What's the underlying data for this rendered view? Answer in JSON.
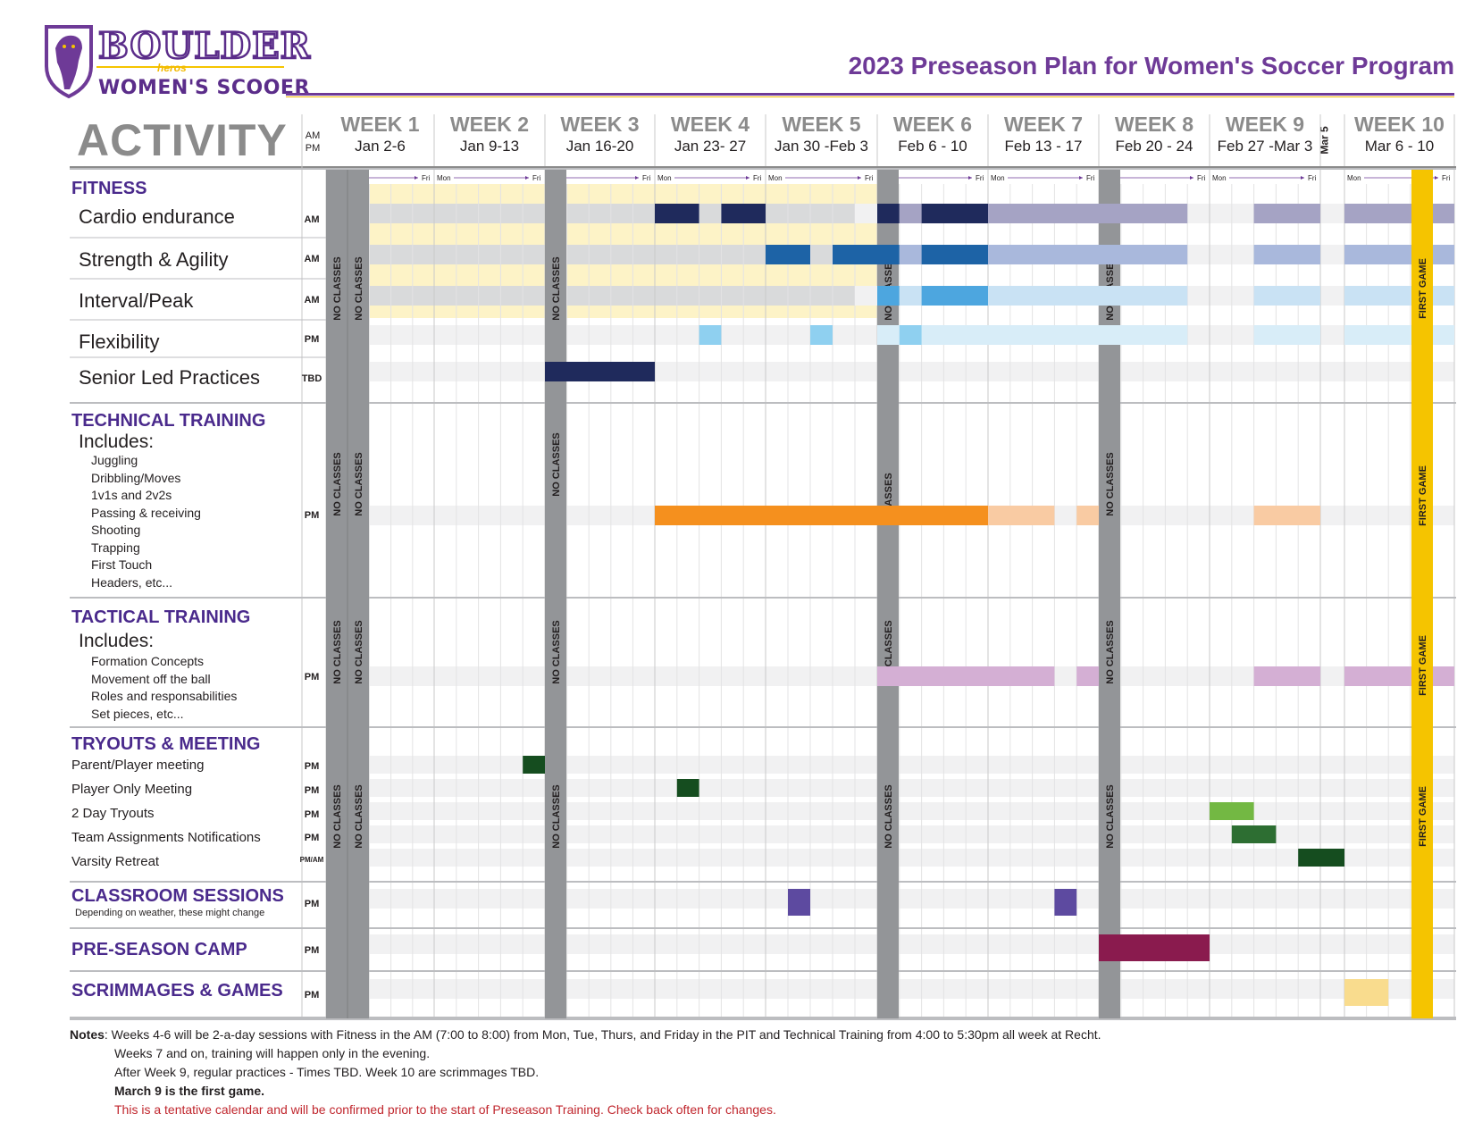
{
  "logo": {
    "main": "BOULDER",
    "sub": "WOMEN'S SCOOER",
    "mid": "heros",
    "shield_icon": "panther-shield-icon"
  },
  "title": "2023 Preseason Plan for Women's Soccer Program",
  "header": {
    "activity": "ACTIVITY",
    "ampm": "AM PM",
    "mar5": "Mar 5",
    "weeks": [
      {
        "name": "WEEK 1",
        "dates": "Jan 2-6"
      },
      {
        "name": "WEEK 2",
        "dates": "Jan 9-13"
      },
      {
        "name": "WEEK 3",
        "dates": "Jan 16-20"
      },
      {
        "name": "WEEK 4",
        "dates": "Jan 23- 27"
      },
      {
        "name": "WEEK 5",
        "dates": "Jan 30 -Feb 3"
      },
      {
        "name": "WEEK 6",
        "dates": "Feb 6 - 10"
      },
      {
        "name": "WEEK 7",
        "dates": "Feb 13 - 17"
      },
      {
        "name": "WEEK 8",
        "dates": "Feb 20 - 24"
      },
      {
        "name": "WEEK 9",
        "dates": "Feb 27 -Mar 3"
      },
      {
        "name": "WEEK 10",
        "dates": "Mar 6 - 10"
      }
    ],
    "mon": "Mon",
    "fri": "Fri"
  },
  "sections": {
    "fitness": {
      "label": "FITNESS",
      "rows": [
        {
          "label": "Cardio endurance",
          "ampm": "AM"
        },
        {
          "label": "Strength & Agility",
          "ampm": "AM"
        },
        {
          "label": "Interval/Peak",
          "ampm": "AM"
        },
        {
          "label": "Flexibility",
          "ampm": "PM"
        },
        {
          "label": "Senior Led Practices",
          "ampm": "TBD"
        }
      ]
    },
    "technical": {
      "label": "TECHNICAL TRAINING",
      "includes": "Includes:",
      "ampm": "PM",
      "items": [
        "Juggling",
        "Dribbling/Moves",
        "1v1s and 2v2s",
        "Passing & receiving",
        "Shooting",
        "Trapping",
        "First Touch",
        "Headers, etc..."
      ]
    },
    "tactical": {
      "label": "TACTICAL TRAINING",
      "includes": "Includes:",
      "ampm": "PM",
      "items": [
        "Formation Concepts",
        "Movement off the ball",
        "Roles and responsabilities",
        "Set pieces, etc..."
      ]
    },
    "tryouts": {
      "label": "TRYOUTS & MEETING",
      "rows": [
        {
          "label": "Parent/Player meeting",
          "ampm": "PM"
        },
        {
          "label": "Player Only Meeting",
          "ampm": "PM"
        },
        {
          "label": "2 Day Tryouts",
          "ampm": "PM"
        },
        {
          "label": "Team Assignments Notifications",
          "ampm": "PM"
        },
        {
          "label": "Varsity Retreat",
          "ampm": "PM/AM"
        }
      ]
    },
    "classroom": {
      "label": "CLASSROOM SESSIONS",
      "note": "Depending on weather, these might change",
      "ampm": "PM"
    },
    "camp": {
      "label": "PRE-SEASON CAMP",
      "ampm": "PM"
    },
    "scrimmages": {
      "label": "SCRIMMAGES & GAMES",
      "ampm": "PM"
    }
  },
  "labels": {
    "no_classes": "NO CLASSES",
    "asses": "ASSES",
    "first_game": "FIRST GAME"
  },
  "notes": {
    "lead": "Notes",
    "line1": ": Weeks 4-6 will be 2-a-day sessions with Fitness in the AM (7:00 to 8:00) from Mon, Tue, Thurs, and Friday in the PIT and Technical Training from 4:00 to 5:30pm all week at Recht.",
    "line2": "Weeks 7 and on, training will happen only in the evening.",
    "line3": "After Week 9, regular practices - Times TBD. Week 10 are scrimmages TBD.",
    "line4": "March 9 is the first game.",
    "line5": "This is a tentative calendar and will be confirmed prior to the start of Preseason Training. Check back often for changes."
  },
  "colors": {
    "purple": "#4a2a8c",
    "gold": "#f5c400",
    "gray": "#939598",
    "cream": "#fdf3c7",
    "navy": "#1f2a5c",
    "blue": "#1d63a6",
    "ltblue": "#4da6df",
    "pale": "#8fd0f0",
    "orange": "#f5901e",
    "peach": "#f9cba3",
    "lavender": "#d4afd4",
    "dkgreen": "#154d1f",
    "green": "#73b843",
    "midgreen": "#2d6e32",
    "violet": "#5d4aa0",
    "maroon": "#8a1b4e",
    "sand": "#f9dc8e"
  }
}
